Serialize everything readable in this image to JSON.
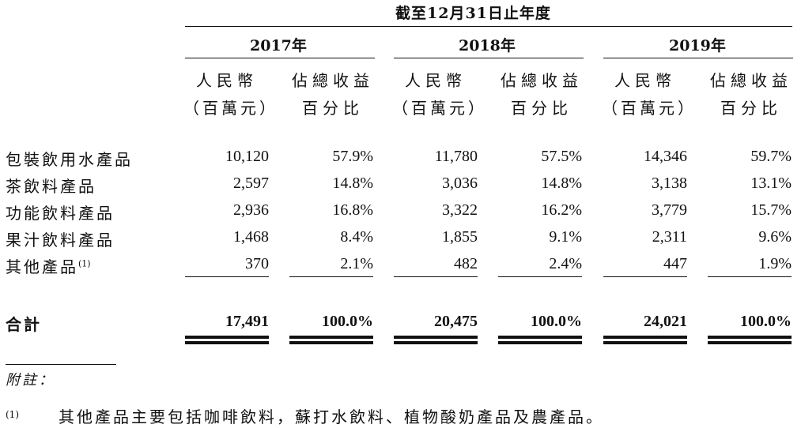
{
  "header": {
    "period": "截至12月31日止年度",
    "years": [
      "2017年",
      "2018年",
      "2019年"
    ],
    "col_rmb": [
      "人民幣",
      "（百萬元）"
    ],
    "col_pct": [
      "佔總收益",
      "百分比"
    ]
  },
  "rows": [
    {
      "label": "包裝飲用水產品",
      "sup": "",
      "values": [
        "10,120",
        "57.9%",
        "11,780",
        "57.5%",
        "14,346",
        "59.7%"
      ]
    },
    {
      "label": "茶飲料產品",
      "sup": "",
      "values": [
        "2,597",
        "14.8%",
        "3,036",
        "14.8%",
        "3,138",
        "13.1%"
      ]
    },
    {
      "label": "功能飲料產品",
      "sup": "",
      "values": [
        "2,936",
        "16.8%",
        "3,322",
        "16.2%",
        "3,779",
        "15.7%"
      ]
    },
    {
      "label": "果汁飲料產品",
      "sup": "",
      "values": [
        "1,468",
        "8.4%",
        "1,855",
        "9.1%",
        "2,311",
        "9.6%"
      ]
    },
    {
      "label": "其他產品",
      "sup": "(1)",
      "values": [
        "370",
        "2.1%",
        "482",
        "2.4%",
        "447",
        "1.9%"
      ]
    }
  ],
  "total": {
    "label": "合計",
    "values": [
      "17,491",
      "100.0%",
      "20,475",
      "100.0%",
      "24,021",
      "100.0%"
    ]
  },
  "notes": {
    "heading": "附註：",
    "items": [
      {
        "mark": "(1)",
        "text": "其他產品主要包括咖啡飲料，蘇打水飲料、植物酸奶產品及農產品。"
      }
    ]
  }
}
